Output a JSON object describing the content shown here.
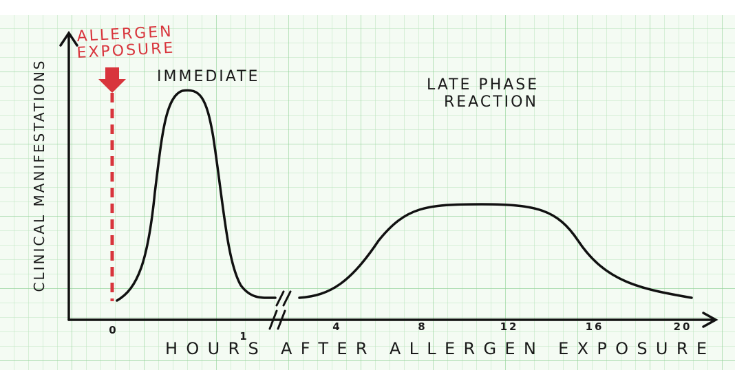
{
  "diagram": {
    "annotations": {
      "exposure_line1": "ALLERGEN",
      "exposure_line2": "EXPOSURE",
      "immediate": "IMMEDIATE",
      "late_line1": "LATE PHASE",
      "late_line2": "REACTION"
    },
    "y_axis": {
      "label": "CLINICAL MANIFESTATIONS"
    },
    "x_axis": {
      "label": "HOURS AFTER ALLERGEN EXPOSURE",
      "ticks": [
        "0",
        "1",
        "4",
        "8",
        "12",
        "16",
        "20"
      ]
    }
  }
}
